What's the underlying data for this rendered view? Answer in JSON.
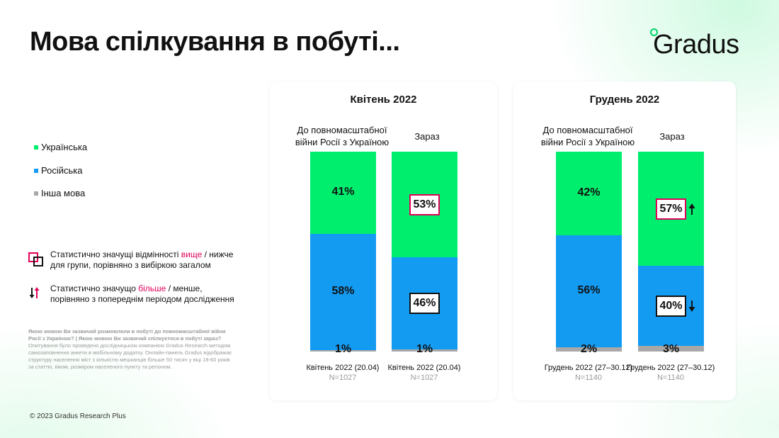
{
  "title": "Мова спілкування в побуті...",
  "logo": {
    "text": "Gradus"
  },
  "colors": {
    "ukrainian": "#00ee6e",
    "russian": "#139bf2",
    "other": "#a8a8a8",
    "significance": "#e0005a",
    "brand": "#00d66b"
  },
  "legend": [
    {
      "label": "Українська",
      "color": "#00ee6e"
    },
    {
      "label": "Російська",
      "color": "#139bf2"
    },
    {
      "label": "Інша мова",
      "color": "#a8a8a8"
    }
  ],
  "notes": {
    "box_note": {
      "before": "Статистично значущі відмінності ",
      "highlight": "вище",
      "after": " / нижче для групи, порівняно з вибіркою загалом"
    },
    "arrow_note": {
      "before": "Статистично значущо ",
      "highlight": "більше",
      "after": " / менше, порівняно з попереднім періодом дослідження"
    }
  },
  "footnote": {
    "question": "Якою мовою Ви зазвичай розмовляли в побуті до повномасштабної війни Росії з Україною? | Якою мовою Ви зазвичай спілкуєтеся в побуті зараз?",
    "body": "Опитування було проведено дослідницькою компанією Gradus Research методом самозаповнення анкети в мобільному додатку. Онлайн-панель Gradus відображає структуру населення міст з кількістю мешканців більше 50 тисяч у віці 18-60 років за статтю, віком, розміром населеного пункту та регіоном."
  },
  "copyright": "© 2023 Gradus Research Plus",
  "chart_data": [
    {
      "type": "bar",
      "stacked": true,
      "title": "Квітень 2022",
      "categories": [
        "До повномасштабної війни Росії з Україною",
        "Зараз"
      ],
      "series": [
        {
          "name": "Українська",
          "values": [
            41,
            53
          ]
        },
        {
          "name": "Російська",
          "values": [
            58,
            46
          ]
        },
        {
          "name": "Інша мова",
          "values": [
            1,
            1
          ]
        }
      ],
      "labels": [
        {
          "ukr": "41%",
          "rus": "58%",
          "other": "1%",
          "ukr_box": "",
          "rus_box": "",
          "ukr_arrow": "",
          "rus_arrow": ""
        },
        {
          "ukr": "53%",
          "rus": "46%",
          "other": "1%",
          "ukr_box": "pink",
          "rus_box": "dark",
          "ukr_arrow": "",
          "rus_arrow": ""
        }
      ],
      "bottom": [
        {
          "period": "Квітень 2022 (20.04)",
          "n": "N=1027"
        },
        {
          "period": "Квітень 2022 (20.04)",
          "n": "N=1027"
        }
      ],
      "ylim": [
        0,
        100
      ]
    },
    {
      "type": "bar",
      "stacked": true,
      "title": "Грудень 2022",
      "categories": [
        "До повномасштабної війни Росії з Україною",
        "Зараз"
      ],
      "series": [
        {
          "name": "Українська",
          "values": [
            42,
            57
          ]
        },
        {
          "name": "Російська",
          "values": [
            56,
            40
          ]
        },
        {
          "name": "Інша мова",
          "values": [
            2,
            3
          ]
        }
      ],
      "labels": [
        {
          "ukr": "42%",
          "rus": "56%",
          "other": "2%",
          "ukr_box": "",
          "rus_box": "",
          "ukr_arrow": "",
          "rus_arrow": ""
        },
        {
          "ukr": "57%",
          "rus": "40%",
          "other": "3%",
          "ukr_box": "pink",
          "rus_box": "dark",
          "ukr_arrow": "up",
          "rus_arrow": "down"
        }
      ],
      "bottom": [
        {
          "period": "Грудень 2022 (27–30.12)",
          "n": "N=1140"
        },
        {
          "period": "Грудень 2022 (27–30.12)",
          "n": "N=1140"
        }
      ],
      "ylim": [
        0,
        100
      ]
    }
  ]
}
